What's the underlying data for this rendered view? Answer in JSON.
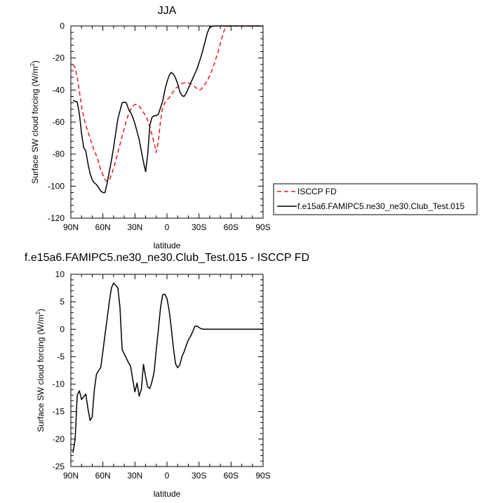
{
  "chart_data": [
    {
      "type": "line",
      "title": "JJA",
      "xlabel": "latitude",
      "ylabel": "Surface SW cloud forcing (W/m²)",
      "ylabel_base": "Surface SW cloud forcing (W/m",
      "ylabel_sup": "2",
      "ylabel_tail": ")",
      "xlim": [
        90,
        -90
      ],
      "ylim": [
        -120,
        0
      ],
      "xticks": [
        90,
        60,
        30,
        0,
        -30,
        -60,
        -90
      ],
      "xtick_labels": [
        "90N",
        "60N",
        "30N",
        "0",
        "30S",
        "60S",
        "90S"
      ],
      "yticks": [
        -120,
        -100,
        -80,
        -60,
        -40,
        -20,
        0
      ],
      "ytick_labels": [
        "-120",
        "-100",
        "-80",
        "-60",
        "-40",
        "-20",
        "0"
      ],
      "legend": "right",
      "series": [
        {
          "name": "ISCCP FD",
          "style": "dashed",
          "color": "#e8191c",
          "x": [
            88,
            86,
            84,
            82,
            80,
            78,
            76,
            74,
            72,
            70,
            68,
            66,
            64,
            62,
            60,
            58,
            56,
            54,
            52,
            50,
            48,
            46,
            44,
            42,
            40,
            38,
            36,
            34,
            32,
            30,
            28,
            26,
            24,
            22,
            20,
            18,
            16,
            14,
            12,
            10,
            8,
            6,
            4,
            2,
            0,
            -2,
            -4,
            -6,
            -8,
            -10,
            -12,
            -14,
            -16,
            -18,
            -20,
            -22,
            -24,
            -26,
            -28,
            -30,
            -32,
            -34,
            -36,
            -38,
            -40,
            -42,
            -44,
            -46,
            -48,
            -50,
            -52,
            -54,
            -56,
            -58,
            -60,
            -62,
            -64,
            -66,
            -68,
            -70,
            -72,
            -74,
            -76,
            -78,
            -80,
            -82,
            -84,
            -86,
            -88,
            -90
          ],
          "y": [
            -24,
            -26,
            -32,
            -41,
            -50,
            -57,
            -62,
            -66,
            -70,
            -74,
            -78,
            -81,
            -85,
            -90,
            -93,
            -96,
            -97,
            -96,
            -93,
            -89,
            -84,
            -79,
            -74,
            -69,
            -64,
            -59,
            -55,
            -52,
            -50,
            -49,
            -49,
            -50,
            -52,
            -54,
            -56,
            -59,
            -63,
            -68,
            -73,
            -79,
            -72,
            -59,
            -51,
            -48,
            -46,
            -45,
            -43,
            -41,
            -39,
            -38,
            -37,
            -36,
            -35.5,
            -35,
            -35.5,
            -36,
            -37,
            -38,
            -39,
            -40,
            -39.5,
            -38,
            -36,
            -34,
            -31,
            -28,
            -24,
            -20,
            -16,
            -11,
            -6,
            -2,
            -0.5,
            0,
            0,
            0,
            0,
            0,
            0,
            0,
            0,
            0,
            0,
            0,
            0,
            0,
            0,
            0,
            0,
            0
          ]
        },
        {
          "name": "f.e15a6.FAMIPC5.ne30_ne30.Club_Test.015",
          "style": "solid",
          "color": "#000000",
          "x": [
            88,
            86,
            84,
            82,
            80,
            78,
            76,
            74,
            72,
            70,
            68,
            66,
            64,
            62,
            60,
            58,
            56,
            54,
            52,
            50,
            48,
            46,
            44,
            42,
            40,
            38,
            36,
            34,
            32,
            30,
            28,
            26,
            24,
            22,
            20,
            18,
            16,
            14,
            12,
            10,
            8,
            6,
            4,
            2,
            0,
            -2,
            -4,
            -6,
            -8,
            -10,
            -12,
            -14,
            -16,
            -18,
            -20,
            -22,
            -24,
            -26,
            -28,
            -30,
            -32,
            -34,
            -36,
            -38,
            -40,
            -42,
            -44,
            -46,
            -48,
            -50,
            -52,
            -54,
            -56,
            -58,
            -60,
            -62,
            -64,
            -66,
            -68,
            -70,
            -72,
            -74,
            -76,
            -78,
            -80,
            -82,
            -84,
            -86,
            -88,
            -90
          ],
          "y": [
            -46.5,
            -47,
            -47.5,
            -55,
            -67,
            -76,
            -78,
            -86,
            -92,
            -96,
            -98,
            -99,
            -101,
            -103,
            -104,
            -104,
            -98,
            -91,
            -84,
            -76,
            -67,
            -58,
            -53,
            -48,
            -47.5,
            -48,
            -52,
            -54,
            -57,
            -61,
            -66,
            -71,
            -78,
            -85,
            -91,
            -80,
            -62,
            -57,
            -56,
            -56,
            -55,
            -51,
            -47,
            -40,
            -35,
            -31,
            -29,
            -30,
            -32.5,
            -36,
            -41,
            -43.5,
            -44,
            -42,
            -39,
            -36,
            -33,
            -30,
            -27,
            -23,
            -19,
            -14,
            -9,
            -4,
            -1,
            -0.2,
            0,
            0,
            0,
            0,
            0,
            0,
            0,
            0,
            0,
            0,
            0,
            0,
            0,
            0,
            0,
            0,
            0,
            0,
            0,
            0,
            0,
            0,
            0,
            0
          ]
        }
      ]
    },
    {
      "type": "line",
      "title": "f.e15a6.FAMIPC5.ne30_ne30.Club_Test.015 - ISCCP FD",
      "xlabel": "latitude",
      "ylabel": "Surface SW cloud forcing (W/m²)",
      "ylabel_base": "Surface SW cloud forcing (W/m",
      "ylabel_sup": "2",
      "ylabel_tail": ")",
      "xlim": [
        90,
        -90
      ],
      "ylim": [
        -25,
        10
      ],
      "xticks": [
        90,
        60,
        30,
        0,
        -30,
        -60,
        -90
      ],
      "xtick_labels": [
        "90N",
        "60N",
        "30N",
        "0",
        "30S",
        "60S",
        "90S"
      ],
      "yticks": [
        -25,
        -20,
        -15,
        -10,
        -5,
        0,
        5,
        10
      ],
      "ytick_labels": [
        "-25",
        "-20",
        "-15",
        "-10",
        "-5",
        "0",
        "5",
        "10"
      ],
      "series": [
        {
          "style": "solid",
          "color": "#000000",
          "x": [
            88,
            86,
            84,
            82,
            80,
            78,
            76,
            74,
            72,
            70,
            68,
            66,
            64,
            62,
            60,
            58,
            56,
            54,
            52,
            50,
            48,
            46,
            44,
            42,
            40,
            38,
            36,
            34,
            32,
            30,
            28,
            26,
            24,
            22,
            20,
            18,
            16,
            14,
            12,
            10,
            8,
            6,
            4,
            2,
            0,
            -2,
            -4,
            -6,
            -8,
            -10,
            -12,
            -14,
            -16,
            -18,
            -20,
            -22,
            -24,
            -26,
            -28,
            -30,
            -32,
            -34,
            -36,
            -38,
            -40,
            -42,
            -44,
            -46,
            -48,
            -50,
            -52,
            -54,
            -56,
            -58,
            -60,
            -62,
            -64,
            -66,
            -68,
            -70,
            -72,
            -74,
            -76,
            -78,
            -80,
            -82,
            -84,
            -86,
            -88,
            -90
          ],
          "y": [
            -22.5,
            -20,
            -12,
            -11.2,
            -12.8,
            -12.3,
            -11.8,
            -14.5,
            -16.6,
            -16,
            -11,
            -8.2,
            -7.5,
            -7,
            -4,
            -1,
            2,
            5,
            7.5,
            8.4,
            8,
            7.5,
            4,
            -3.7,
            -4.5,
            -5.3,
            -6.1,
            -6.8,
            -9.2,
            -11.4,
            -9.8,
            -12.2,
            -10.9,
            -6.4,
            -8.7,
            -10.5,
            -10.8,
            -9.5,
            -7.8,
            -3.7,
            0,
            4,
            6.3,
            6.4,
            5.6,
            3.5,
            0.3,
            -3.3,
            -6.3,
            -7,
            -6.5,
            -5,
            -4.1,
            -3,
            -2,
            -1.3,
            -0.5,
            0.5,
            0.6,
            0.3,
            0.1,
            0,
            0,
            0,
            0,
            0,
            0,
            0,
            0,
            0,
            0,
            0,
            0,
            0,
            0,
            0,
            0,
            0,
            0,
            0,
            0,
            0,
            0,
            0,
            0,
            0,
            0,
            0,
            0,
            0
          ]
        }
      ]
    }
  ]
}
